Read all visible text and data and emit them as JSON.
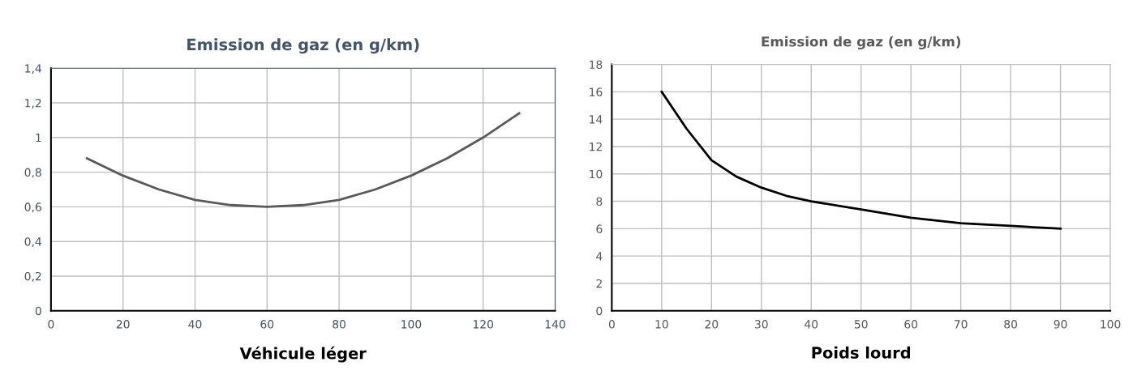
{
  "chart_data": [
    {
      "type": "line",
      "title": "Emission de gaz (en g/km)",
      "xlabel": "Véhicule léger",
      "x": [
        10,
        20,
        30,
        40,
        50,
        60,
        70,
        80,
        90,
        100,
        110,
        120,
        130
      ],
      "series": [
        {
          "color": "#595959",
          "values": [
            0.88,
            0.78,
            0.7,
            0.64,
            0.61,
            0.6,
            0.61,
            0.64,
            0.7,
            0.78,
            0.88,
            1.0,
            1.14
          ]
        }
      ],
      "xlim": [
        0,
        140
      ],
      "xticks": [
        0,
        20,
        40,
        60,
        80,
        100,
        120,
        140
      ],
      "ylim": [
        0,
        1.4
      ],
      "yticks": [
        {
          "value": 0,
          "label": "0"
        },
        {
          "value": 0.2,
          "label": "0,2"
        },
        {
          "value": 0.4,
          "label": "0,4"
        },
        {
          "value": 0.6,
          "label": "0,6"
        },
        {
          "value": 0.8,
          "label": "0,8"
        },
        {
          "value": 1,
          "label": "1"
        },
        {
          "value": 1.2,
          "label": "1,2"
        },
        {
          "value": 1.4,
          "label": "1,4"
        }
      ],
      "grid": true,
      "marker": "none",
      "line_style": "solid"
    },
    {
      "type": "line",
      "title": "Emission de gaz (en g/km)",
      "xlabel": "Poids lourd",
      "x": [
        10,
        15,
        20,
        25,
        30,
        35,
        40,
        50,
        60,
        70,
        80,
        90
      ],
      "series": [
        {
          "color": "#000000",
          "values": [
            16,
            13.3,
            11,
            9.8,
            9,
            8.4,
            8,
            7.4,
            6.8,
            6.4,
            6.2,
            6.0
          ]
        }
      ],
      "xlim": [
        0,
        100
      ],
      "xticks": [
        0,
        10,
        20,
        30,
        40,
        50,
        60,
        70,
        80,
        90,
        100
      ],
      "ylim": [
        0,
        18
      ],
      "yticks": [
        0,
        2,
        4,
        6,
        8,
        10,
        12,
        14,
        16,
        18
      ],
      "grid": true,
      "marker": "none",
      "line_style": "solid"
    }
  ]
}
